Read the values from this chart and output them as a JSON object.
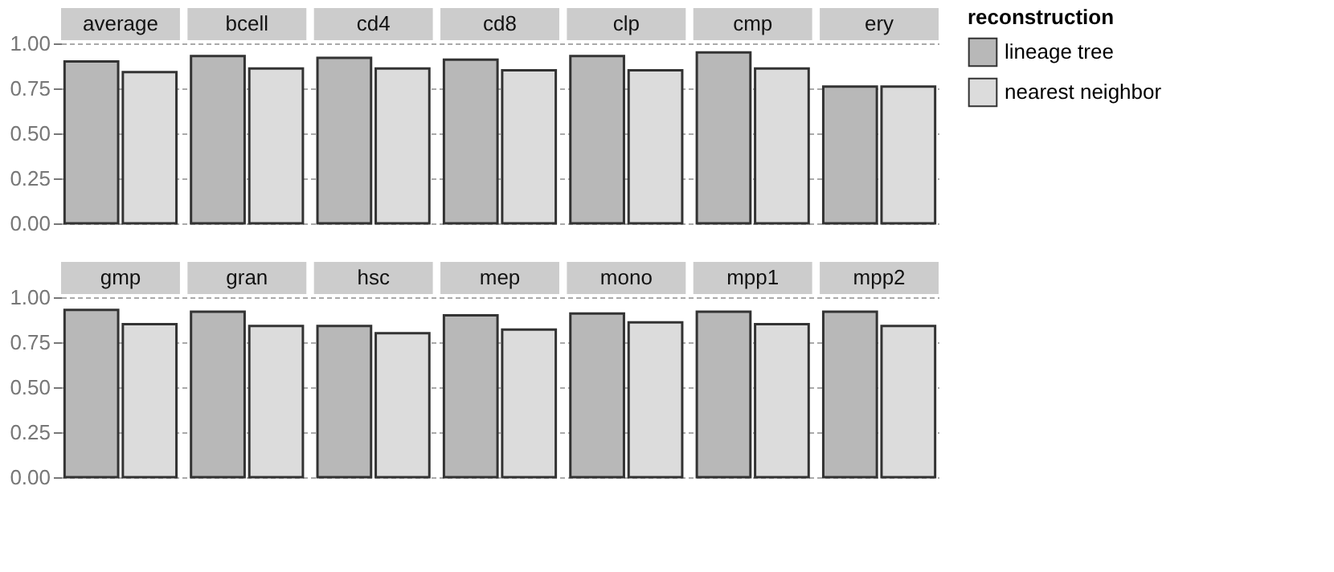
{
  "chart_data": [
    {
      "type": "bar",
      "categories": [
        "average",
        "bcell",
        "cd4",
        "cd8",
        "clp",
        "cmp",
        "ery"
      ],
      "series": [
        {
          "name": "lineage tree",
          "color": "#b8b8b8",
          "values": [
            0.9,
            0.93,
            0.92,
            0.91,
            0.93,
            0.95,
            0.76
          ]
        },
        {
          "name": "nearest neighbor",
          "color": "#dcdcdc",
          "values": [
            0.84,
            0.86,
            0.86,
            0.85,
            0.85,
            0.86,
            0.76
          ]
        }
      ],
      "ylim": [
        0,
        1
      ],
      "yticks": [
        {
          "value": 0,
          "label": "0.00"
        },
        {
          "value": 0.25,
          "label": "0.25"
        },
        {
          "value": 0.5,
          "label": "0.50"
        },
        {
          "value": 0.75,
          "label": "0.75"
        },
        {
          "value": 1,
          "label": "1.00"
        }
      ],
      "legend_title": "reconstruction",
      "legend": "right",
      "grid": "y"
    },
    {
      "type": "bar",
      "categories": [
        "gmp",
        "gran",
        "hsc",
        "mep",
        "mono",
        "mpp1",
        "mpp2"
      ],
      "series": [
        {
          "name": "lineage tree",
          "color": "#b8b8b8",
          "values": [
            0.93,
            0.92,
            0.84,
            0.9,
            0.91,
            0.92,
            0.92
          ]
        },
        {
          "name": "nearest neighbor",
          "color": "#dcdcdc",
          "values": [
            0.85,
            0.84,
            0.8,
            0.82,
            0.86,
            0.85,
            0.84
          ]
        }
      ],
      "ylim": [
        0,
        1
      ],
      "yticks": [
        {
          "value": 0,
          "label": "0.00"
        },
        {
          "value": 0.25,
          "label": "0.25"
        },
        {
          "value": 0.5,
          "label": "0.50"
        },
        {
          "value": 0.75,
          "label": "0.75"
        },
        {
          "value": 1,
          "label": "1.00"
        }
      ],
      "grid": "y"
    }
  ]
}
